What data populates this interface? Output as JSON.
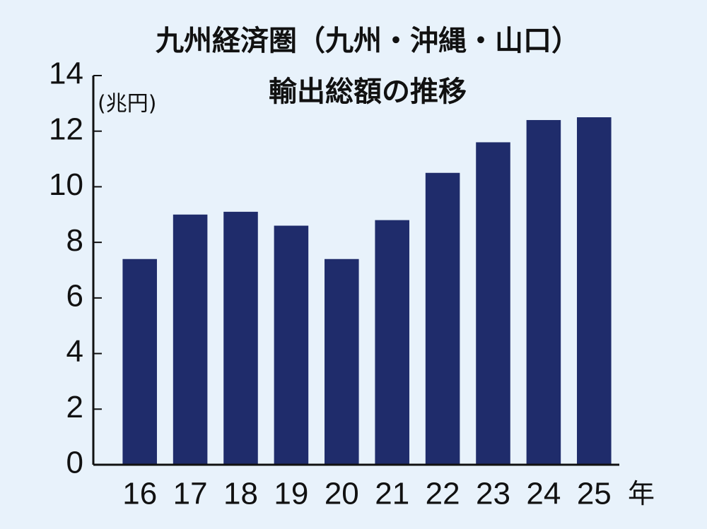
{
  "chart_data": {
    "type": "bar",
    "title": [
      "九州経済圏（九州・沖縄・山口）",
      "輸出総額の推移"
    ],
    "y_label": "(兆円)",
    "x_label": "年",
    "categories": [
      "16",
      "17",
      "18",
      "19",
      "20",
      "21",
      "22",
      "23",
      "24",
      "25"
    ],
    "values": [
      7.4,
      9.0,
      9.1,
      8.6,
      7.4,
      8.8,
      10.5,
      11.6,
      12.4,
      12.5
    ],
    "color": "#1f2c6b",
    "ylim": [
      0,
      14
    ],
    "yticks": [
      0,
      2,
      4,
      6,
      8,
      10,
      12,
      14
    ],
    "grid": false
  }
}
